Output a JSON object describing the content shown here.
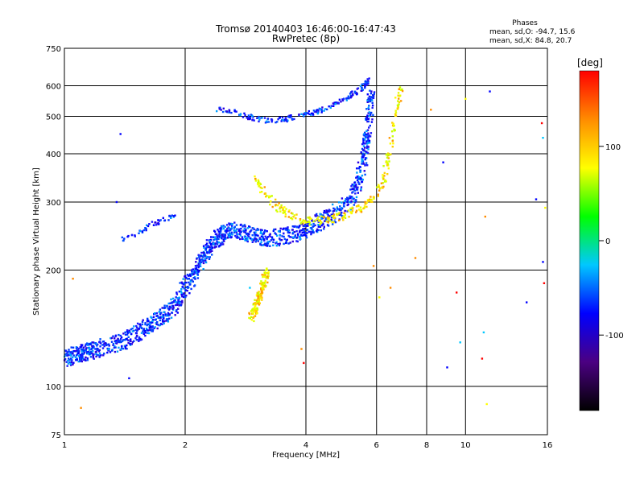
{
  "chart_data": {
    "type": "scatter",
    "title": "Tromsø 20140403 16:46:00-16:47:43",
    "subtitle": "RwPretec (8p)",
    "xlabel": "Frequency [MHz]",
    "ylabel": "Stationary phase Virtual Height [km]",
    "x_scale": "log",
    "y_scale": "log",
    "xlim": [
      1,
      16
    ],
    "ylim": [
      75,
      750
    ],
    "x_ticks": [
      "1",
      "2",
      "4",
      "6",
      "8",
      "10",
      "16"
    ],
    "y_ticks": [
      "75",
      "100",
      "200",
      "300",
      "400",
      "500",
      "600",
      "750"
    ],
    "grid": true,
    "phases_stats": {
      "heading": "Phases",
      "line1": "mean, sd,O: -94.7, 15.6",
      "line2": "mean, sd,X:  84.8, 20.7"
    },
    "colorbar": {
      "label": "[deg]",
      "range": [
        -180,
        180
      ],
      "ticks": [
        "100",
        "0",
        "-100"
      ],
      "colors": [
        "#000000",
        "#4b0082",
        "#0000ff",
        "#00c8ff",
        "#00ff00",
        "#ffff00",
        "#ff8c00",
        "#ff0000"
      ]
    },
    "o_trace": [
      {
        "f": 1.0,
        "h": 118
      },
      {
        "f": 1.05,
        "h": 120
      },
      {
        "f": 1.1,
        "h": 122
      },
      {
        "f": 1.15,
        "h": 123
      },
      {
        "f": 1.2,
        "h": 125
      },
      {
        "f": 1.3,
        "h": 128
      },
      {
        "f": 1.4,
        "h": 131
      },
      {
        "f": 1.5,
        "h": 136
      },
      {
        "f": 1.6,
        "h": 142
      },
      {
        "f": 1.7,
        "h": 148
      },
      {
        "f": 1.8,
        "h": 155
      },
      {
        "f": 1.9,
        "h": 165
      },
      {
        "f": 2.0,
        "h": 180
      },
      {
        "f": 2.1,
        "h": 195
      },
      {
        "f": 2.2,
        "h": 212
      },
      {
        "f": 2.3,
        "h": 228
      },
      {
        "f": 2.4,
        "h": 242
      },
      {
        "f": 2.5,
        "h": 250
      },
      {
        "f": 2.6,
        "h": 253
      },
      {
        "f": 2.8,
        "h": 250
      },
      {
        "f": 3.0,
        "h": 245
      },
      {
        "f": 3.2,
        "h": 242
      },
      {
        "f": 3.5,
        "h": 244
      },
      {
        "f": 3.8,
        "h": 250
      },
      {
        "f": 4.0,
        "h": 256
      },
      {
        "f": 4.3,
        "h": 265
      },
      {
        "f": 4.6,
        "h": 276
      },
      {
        "f": 5.0,
        "h": 292
      },
      {
        "f": 5.3,
        "h": 320
      },
      {
        "f": 5.5,
        "h": 360
      },
      {
        "f": 5.65,
        "h": 420
      },
      {
        "f": 5.75,
        "h": 500
      },
      {
        "f": 5.82,
        "h": 580
      }
    ],
    "f2_echo_trace": [
      {
        "f": 2.4,
        "h": 520
      },
      {
        "f": 2.6,
        "h": 515
      },
      {
        "f": 2.9,
        "h": 498
      },
      {
        "f": 3.2,
        "h": 488
      },
      {
        "f": 3.5,
        "h": 490
      },
      {
        "f": 3.8,
        "h": 500
      },
      {
        "f": 4.2,
        "h": 512
      },
      {
        "f": 4.6,
        "h": 530
      },
      {
        "f": 5.0,
        "h": 555
      },
      {
        "f": 5.3,
        "h": 575
      },
      {
        "f": 5.6,
        "h": 600
      },
      {
        "f": 5.8,
        "h": 625
      }
    ],
    "x_trace": [
      {
        "f": 3.0,
        "h": 350
      },
      {
        "f": 3.2,
        "h": 310
      },
      {
        "f": 3.5,
        "h": 285
      },
      {
        "f": 3.8,
        "h": 272
      },
      {
        "f": 4.2,
        "h": 268
      },
      {
        "f": 4.6,
        "h": 270
      },
      {
        "f": 5.0,
        "h": 278
      },
      {
        "f": 5.5,
        "h": 290
      },
      {
        "f": 6.0,
        "h": 310
      },
      {
        "f": 6.3,
        "h": 350
      },
      {
        "f": 6.5,
        "h": 420
      },
      {
        "f": 6.7,
        "h": 520
      },
      {
        "f": 6.9,
        "h": 600
      }
    ],
    "x_trace_low": [
      {
        "f": 2.9,
        "h": 150
      },
      {
        "f": 3.0,
        "h": 158
      },
      {
        "f": 3.05,
        "h": 168
      },
      {
        "f": 3.1,
        "h": 178
      },
      {
        "f": 3.15,
        "h": 188
      },
      {
        "f": 3.2,
        "h": 200
      }
    ],
    "es_trace": [
      {
        "f": 1.4,
        "h": 240
      },
      {
        "f": 1.5,
        "h": 248
      },
      {
        "f": 1.6,
        "h": 258
      },
      {
        "f": 1.7,
        "h": 265
      },
      {
        "f": 1.8,
        "h": 272
      },
      {
        "f": 1.9,
        "h": 280
      }
    ],
    "sparse_points": [
      {
        "f": 1.05,
        "h": 190,
        "c": "#ff8c00"
      },
      {
        "f": 1.1,
        "h": 88,
        "c": "#ff8c00"
      },
      {
        "f": 1.35,
        "h": 300,
        "c": "#0000ff"
      },
      {
        "f": 1.38,
        "h": 450,
        "c": "#0000ff"
      },
      {
        "f": 1.45,
        "h": 105,
        "c": "#0000ff"
      },
      {
        "f": 2.9,
        "h": 180,
        "c": "#00c8ff"
      },
      {
        "f": 3.9,
        "h": 125,
        "c": "#ff8c00"
      },
      {
        "f": 3.95,
        "h": 115,
        "c": "#ff0000"
      },
      {
        "f": 5.9,
        "h": 205,
        "c": "#ff8c00"
      },
      {
        "f": 6.1,
        "h": 170,
        "c": "#ffff00"
      },
      {
        "f": 6.5,
        "h": 180,
        "c": "#ff8c00"
      },
      {
        "f": 7.5,
        "h": 215,
        "c": "#ff8c00"
      },
      {
        "f": 8.2,
        "h": 520,
        "c": "#ff8c00"
      },
      {
        "f": 8.8,
        "h": 380,
        "c": "#0000ff"
      },
      {
        "f": 9.0,
        "h": 112,
        "c": "#0000ff"
      },
      {
        "f": 9.5,
        "h": 175,
        "c": "#ff0000"
      },
      {
        "f": 9.7,
        "h": 130,
        "c": "#00c8ff"
      },
      {
        "f": 10.0,
        "h": 555,
        "c": "#ffff00"
      },
      {
        "f": 11.2,
        "h": 275,
        "c": "#ff8c00"
      },
      {
        "f": 11.1,
        "h": 138,
        "c": "#00c8ff"
      },
      {
        "f": 11.0,
        "h": 118,
        "c": "#ff0000"
      },
      {
        "f": 11.3,
        "h": 90,
        "c": "#ffff00"
      },
      {
        "f": 11.5,
        "h": 580,
        "c": "#0000ff"
      },
      {
        "f": 14.2,
        "h": 165,
        "c": "#0000ff"
      },
      {
        "f": 15.0,
        "h": 305,
        "c": "#0000ff"
      },
      {
        "f": 15.5,
        "h": 480,
        "c": "#ff0000"
      },
      {
        "f": 15.6,
        "h": 440,
        "c": "#00c8ff"
      },
      {
        "f": 15.6,
        "h": 210,
        "c": "#0000ff"
      },
      {
        "f": 15.7,
        "h": 185,
        "c": "#ff0000"
      },
      {
        "f": 15.8,
        "h": 290,
        "c": "#ffff00"
      }
    ]
  }
}
